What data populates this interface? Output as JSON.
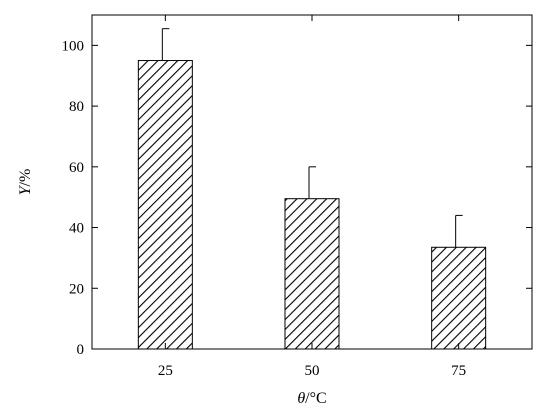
{
  "chart_data": {
    "type": "bar",
    "categories": [
      "25",
      "50",
      "75"
    ],
    "values": [
      95,
      49.5,
      33.5
    ],
    "errors": [
      10.5,
      10.5,
      10.5
    ],
    "xlabel": "θ/°C",
    "ylabel": "Y/%",
    "ylim": [
      0,
      110
    ],
    "yticks": [
      0,
      20,
      40,
      60,
      80,
      100
    ],
    "bar_fill": "diagonal-hatch",
    "colors": {
      "bar_stroke": "#000000",
      "hatch": "#000000",
      "background": "#ffffff"
    },
    "grid": false
  }
}
